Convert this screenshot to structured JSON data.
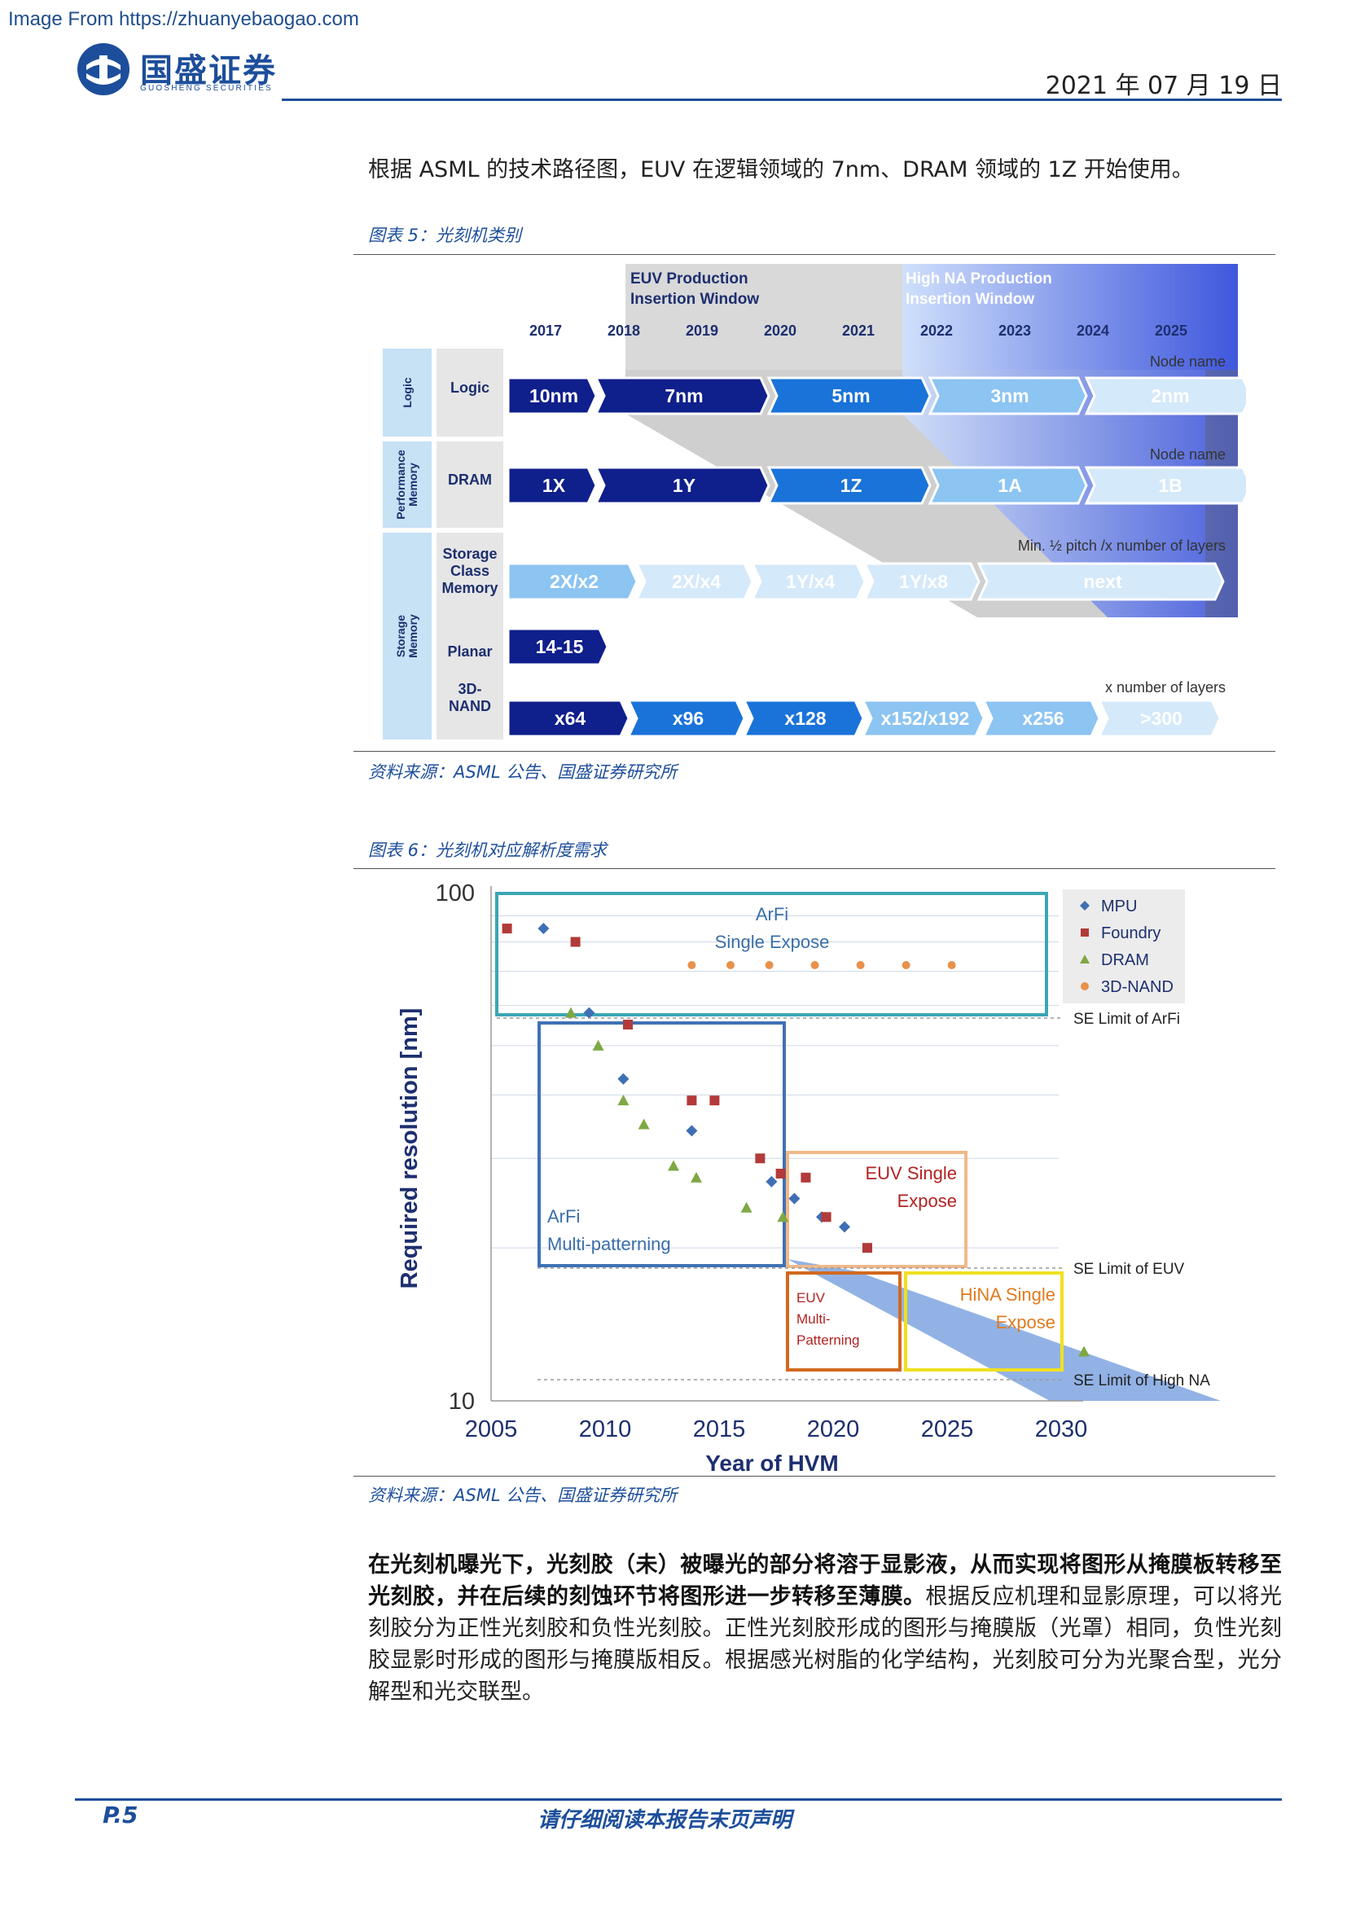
{
  "watermark": "Image From https://zhuanyebaogao.com",
  "header": {
    "brand_cn": "国盛证券",
    "brand_en": "GUOSHENG SECURITIES",
    "date": "2021 年 07 月 19 日"
  },
  "intro": "根据 ASML 的技术路径图，EUV 在逻辑领域的 7nm、DRAM 领域的 1Z 开始使用。",
  "figure5": {
    "title": "图表 5：光刻机类别",
    "source": "资料来源：ASML 公告、国盛证券研究所",
    "euv_window": "EUV Production\nInsertion Window",
    "highna_window": "High NA Production\nInsertion Window",
    "years": [
      "2017",
      "2018",
      "2019",
      "2020",
      "2021",
      "2022",
      "2023",
      "2024",
      "2025"
    ],
    "groups": [
      "Logic",
      "Performance\nMemory",
      "Storage\nMemory"
    ],
    "row_labels": [
      "Logic",
      "DRAM",
      "Storage\nClass\nMemory",
      "Planar",
      "3D-\nNAND"
    ],
    "captions": {
      "logic": "Node name",
      "dram": "Node name",
      "scm": "Min. ½ pitch /x number of layers",
      "nand": "x number of layers"
    },
    "logic_nodes": [
      "10nm",
      "7nm",
      "5nm",
      "3nm",
      "2nm"
    ],
    "dram_nodes": [
      "1X",
      "1Y",
      "1Z",
      "1A",
      "1B"
    ],
    "scm_nodes": [
      "2X/x2",
      "2X/x4",
      "1Y/x4",
      "1Y/x8",
      "next"
    ],
    "planar_nodes": [
      "14-15"
    ],
    "nand_nodes": [
      "x64",
      "x96",
      "x128",
      "x152/x192",
      "x256",
      ">300"
    ],
    "colors": {
      "dark": "#0f1f8c",
      "mid": "#1a73d9",
      "light": "#8cc4f2",
      "pale": "#d4e9fa"
    }
  },
  "figure6": {
    "title": "图表 6：光刻机对应解析度需求",
    "source": "资料来源：ASML 公告、国盛证券研究所",
    "ylabel": "Required resolution [nm]",
    "xlabel": "Year of HVM",
    "yticks": [
      "100",
      "10"
    ],
    "xticks": [
      "2005",
      "2010",
      "2015",
      "2020",
      "2025",
      "2030"
    ],
    "legend": [
      "MPU",
      "Foundry",
      "DRAM",
      "3D-NAND"
    ],
    "box_labels": {
      "arfi_single": "ArFi\nSingle Expose",
      "arfi_multi": "ArFi\nMulti-patterning",
      "euv_single": "EUV Single\nExpose",
      "euv_multi": "EUV\nMulti-\nPatterning",
      "hina_single": "HiNA Single\nExpose"
    },
    "limits": [
      "SE Limit of ArFi",
      "SE Limit of EUV",
      "SE Limit of High NA"
    ]
  },
  "chart_data": {
    "type": "scatter",
    "xlabel": "Year of HVM",
    "ylabel": "Required resolution [nm]",
    "xlim": [
      2005,
      2032
    ],
    "ylim": [
      10,
      100
    ],
    "yscale": "log",
    "grid": true,
    "legend_position": "top-right",
    "series": [
      {
        "name": "MPU",
        "marker": "diamond",
        "color": "#3f6fb5",
        "points": [
          [
            2007.3,
            85
          ],
          [
            2009.3,
            58
          ],
          [
            2010.8,
            43
          ],
          [
            2013.8,
            34
          ],
          [
            2017.3,
            27
          ],
          [
            2018.3,
            25
          ],
          [
            2019.5,
            23
          ],
          [
            2020.5,
            22
          ]
        ]
      },
      {
        "name": "Foundry",
        "marker": "square",
        "color": "#b23a3a",
        "points": [
          [
            2005.7,
            85
          ],
          [
            2008.7,
            80
          ],
          [
            2011.0,
            55
          ],
          [
            2013.8,
            39
          ],
          [
            2014.8,
            39
          ],
          [
            2016.8,
            30
          ],
          [
            2017.7,
            28
          ],
          [
            2018.8,
            27.5
          ],
          [
            2019.7,
            23
          ],
          [
            2021.5,
            20
          ]
        ]
      },
      {
        "name": "DRAM",
        "marker": "triangle",
        "color": "#7fa844",
        "points": [
          [
            2008.5,
            58
          ],
          [
            2009.7,
            50
          ],
          [
            2010.8,
            39
          ],
          [
            2011.7,
            35
          ],
          [
            2013.0,
            29
          ],
          [
            2014.0,
            27.5
          ],
          [
            2016.2,
            24
          ],
          [
            2017.8,
            23
          ],
          [
            2031.0,
            12.5
          ]
        ]
      },
      {
        "name": "3D-NAND",
        "marker": "circle",
        "color": "#e8914a",
        "points": [
          [
            2013.8,
            72
          ],
          [
            2015.5,
            72
          ],
          [
            2017.2,
            72
          ],
          [
            2019.2,
            72
          ],
          [
            2021.2,
            72
          ],
          [
            2023.2,
            72
          ],
          [
            2025.2,
            72
          ]
        ]
      }
    ]
  },
  "paragraph": {
    "bold": "在光刻机曝光下，光刻胶（未）被曝光的部分将溶于显影液，从而实现将图形从掩膜板转移至光刻胶，并在后续的刻蚀环节将图形进一步转移至薄膜。",
    "normal": "根据反应机理和显影原理，可以将光刻胶分为正性光刻胶和负性光刻胶。正性光刻胶形成的图形与掩膜版（光罩）相同，负性光刻胶显影时形成的图形与掩膜版相反。根据感光树脂的化学结构，光刻胶可分为光聚合型，光分解型和光交联型。"
  },
  "footer": {
    "page": "P.5",
    "notice": "请仔细阅读本报告末页声明"
  }
}
